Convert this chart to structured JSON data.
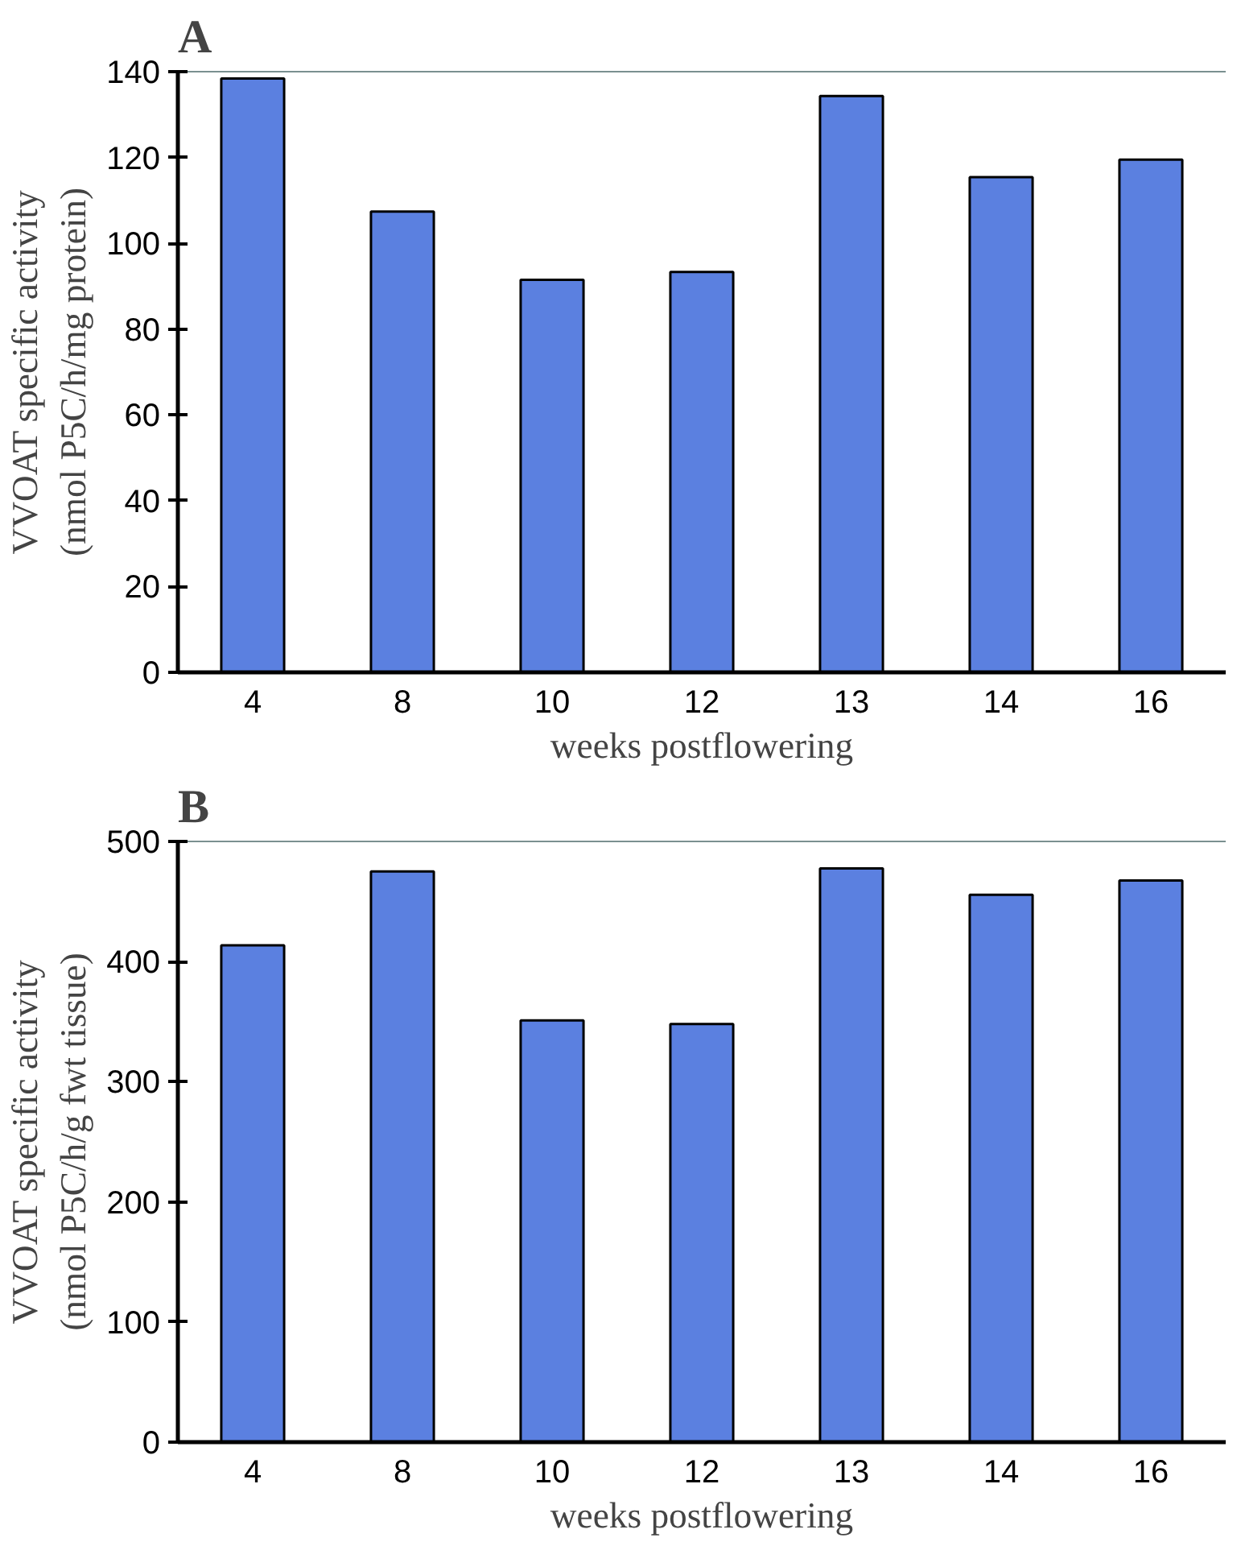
{
  "chart_data": [
    {
      "type": "bar",
      "title": "A",
      "categories": [
        "4",
        "8",
        "10",
        "12",
        "13",
        "14",
        "16"
      ],
      "values": [
        138.4,
        107.4,
        91.5,
        93.3,
        134.3,
        115.4,
        119.5
      ],
      "color": "#5b80e0",
      "ylim": [
        0,
        140
      ],
      "yticks": [
        0,
        20,
        40,
        60,
        80,
        100,
        120,
        140
      ],
      "grid": false,
      "xlabel": "weeks postflowering",
      "ylabel": "VVOAT specific activity\n(nmol P5C/h/mg protein)"
    },
    {
      "type": "bar",
      "title": "B",
      "categories": [
        "4",
        "8",
        "10",
        "12",
        "13",
        "14",
        "16"
      ],
      "values": [
        413.6,
        475,
        351,
        348,
        477.5,
        455.6,
        467.5
      ],
      "color": "#5b80e0",
      "ylim": [
        0,
        500
      ],
      "yticks": [
        0,
        100,
        200,
        300,
        400,
        500
      ],
      "grid": false,
      "xlabel": "weeks postflowering",
      "ylabel": "VVOAT specific activity\n(nmol P5C/h/g fwt tissue)"
    }
  ]
}
